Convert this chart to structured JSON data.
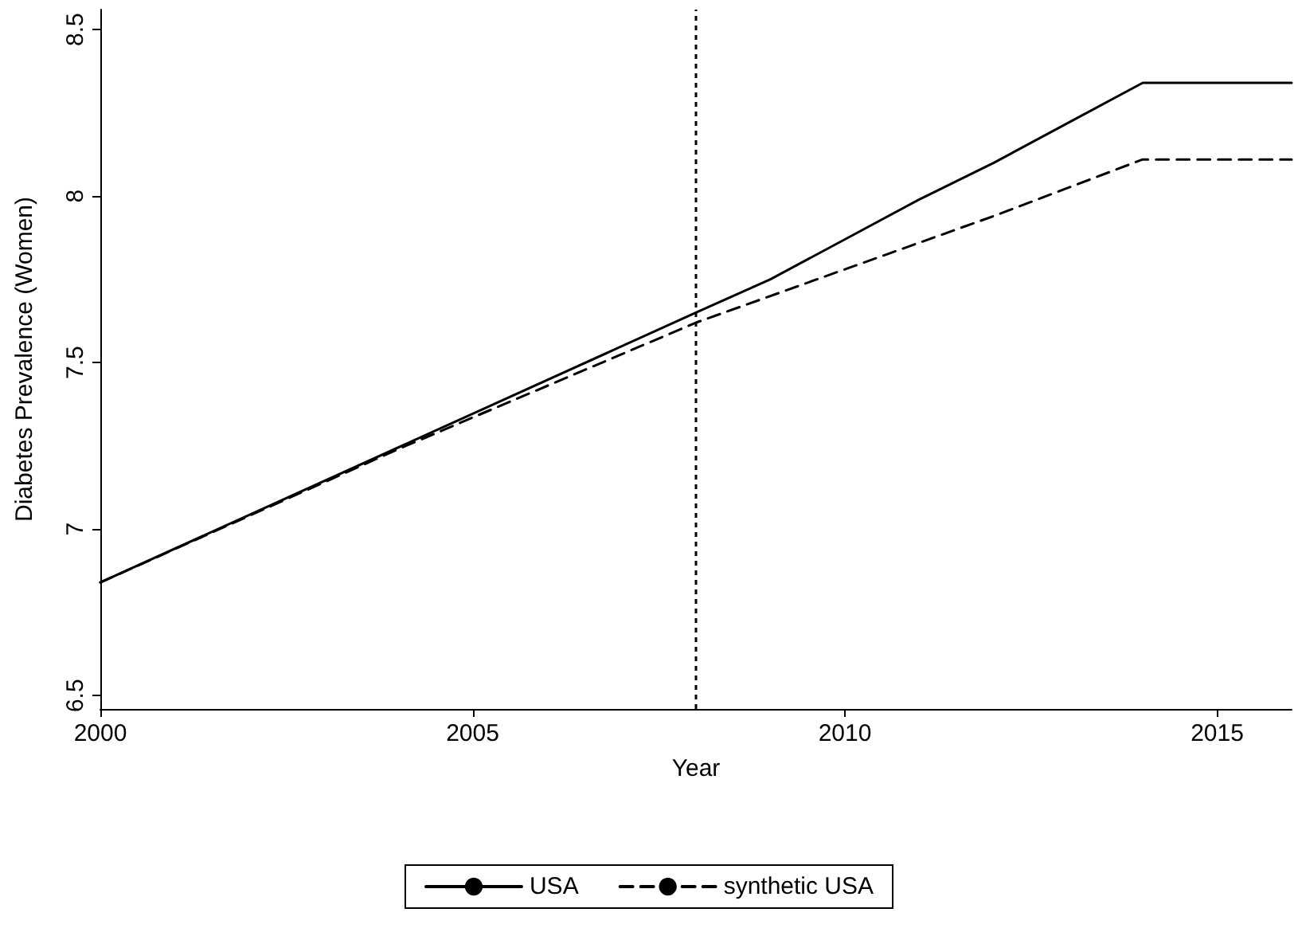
{
  "chart_data": {
    "type": "line",
    "xlabel": "Year",
    "ylabel": "Diabetes Prevalence (Women)",
    "xlim": [
      2000,
      2016
    ],
    "xticks": [
      2000,
      2005,
      2010,
      2015
    ],
    "ylim": [
      6.46,
      8.56
    ],
    "yticks": [
      6.5,
      7,
      7.5,
      8,
      8.5
    ],
    "grid": false,
    "legend": "bottom",
    "marker": "none",
    "series": [
      {
        "name": "USA",
        "color": "#000000",
        "line_style": "solid",
        "x": [
          2000,
          2008,
          2009,
          2010,
          2011,
          2012,
          2013,
          2014,
          2016
        ],
        "values": [
          6.84,
          7.65,
          7.75,
          7.87,
          7.99,
          8.1,
          8.22,
          8.34,
          8.34
        ]
      },
      {
        "name": "synthetic USA",
        "color": "#000000",
        "line_style": "dashed",
        "x": [
          2000,
          2004,
          2008,
          2010,
          2012,
          2014,
          2016
        ],
        "values": [
          6.84,
          7.24,
          7.62,
          7.78,
          7.94,
          8.11,
          8.11
        ]
      }
    ],
    "ref_lines": [
      {
        "axis": "x",
        "value": 2008,
        "line_style": "dotted",
        "color": "#000000"
      }
    ]
  }
}
